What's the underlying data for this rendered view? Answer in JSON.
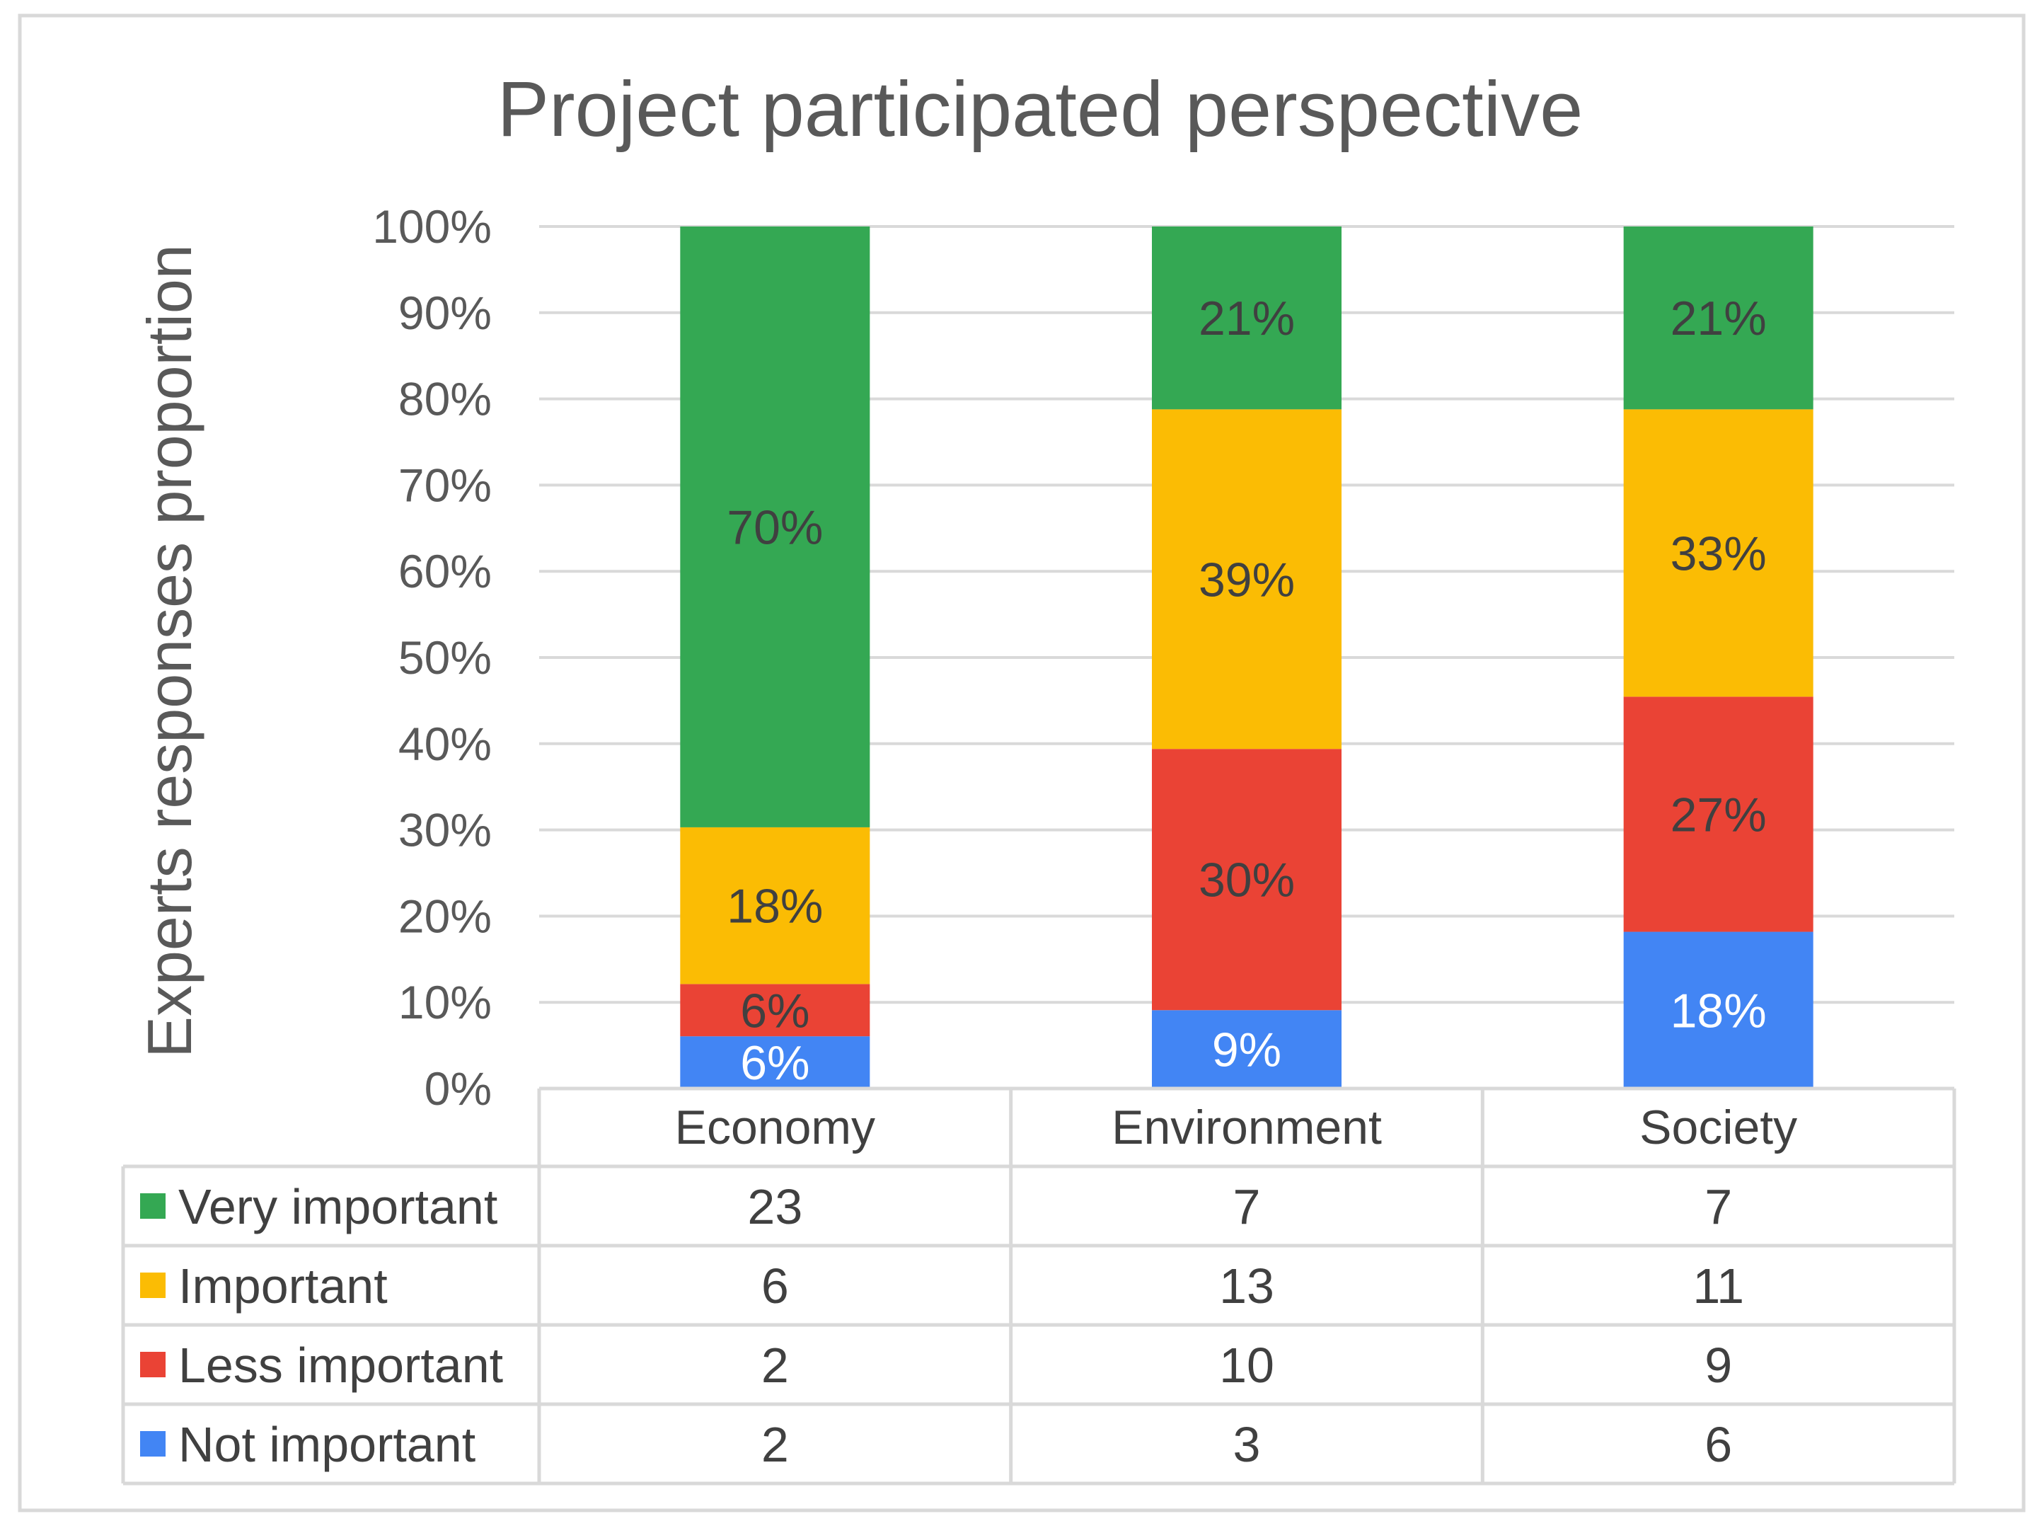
{
  "chart_data": {
    "type": "bar",
    "stacked": true,
    "normalized": true,
    "title": "Project participated perspective",
    "xlabel": "",
    "ylabel": "Experts responses proportion",
    "ylim": [
      0,
      100
    ],
    "yticks": [
      "0%",
      "10%",
      "20%",
      "30%",
      "40%",
      "50%",
      "60%",
      "70%",
      "80%",
      "90%",
      "100%"
    ],
    "grid": true,
    "legend_placement": "data-table",
    "categories": [
      "Economy",
      "Environment",
      "Society"
    ],
    "series": [
      {
        "name": "Not important",
        "color": "#4285f4",
        "label_color": "#ffffff",
        "counts": [
          2,
          3,
          6
        ],
        "percent_labels": [
          "6%",
          "9%",
          "18%"
        ]
      },
      {
        "name": "Less important",
        "color": "#ea4335",
        "label_color": "#404040",
        "counts": [
          2,
          10,
          9
        ],
        "percent_labels": [
          "6%",
          "30%",
          "27%"
        ]
      },
      {
        "name": "Important",
        "color": "#fbbc04",
        "label_color": "#404040",
        "counts": [
          6,
          13,
          11
        ],
        "percent_labels": [
          "18%",
          "39%",
          "33%"
        ]
      },
      {
        "name": "Very important",
        "color": "#34a853",
        "label_color": "#404040",
        "counts": [
          23,
          7,
          7
        ],
        "percent_labels": [
          "70%",
          "21%",
          "21%"
        ]
      }
    ],
    "table_row_order": [
      "Very important",
      "Important",
      "Less important",
      "Not important"
    ]
  }
}
